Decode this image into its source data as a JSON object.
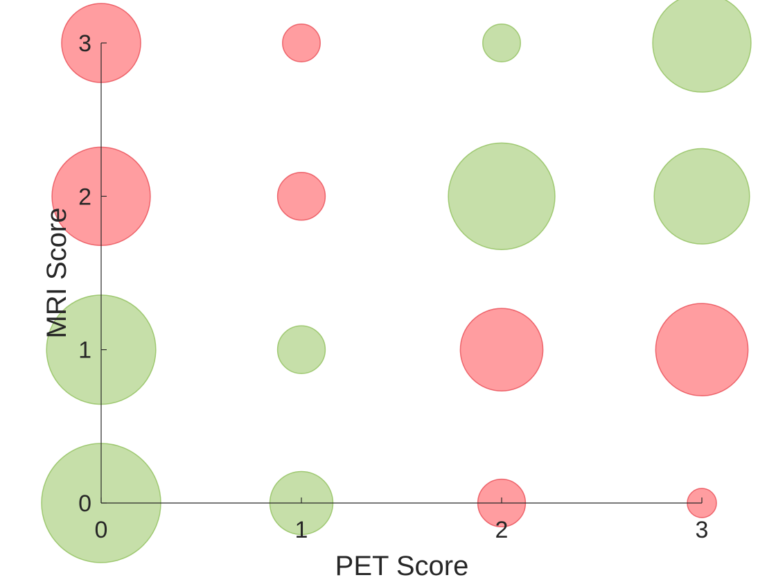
{
  "chart_data": {
    "type": "scatter",
    "subtype": "bubble",
    "xlabel": "PET Score",
    "ylabel": "MRI Score",
    "xlim": [
      0,
      3
    ],
    "ylim": [
      0,
      3
    ],
    "xticks": [
      "0",
      "1",
      "2",
      "3"
    ],
    "yticks": [
      "0",
      "1",
      "2",
      "3"
    ],
    "grid": false,
    "legend": "none",
    "colors": {
      "green": "#a9cf7c",
      "red": "#ff6b6f"
    },
    "points": [
      {
        "x": 0,
        "y": 0,
        "size": 25,
        "color": "green"
      },
      {
        "x": 1,
        "y": 0,
        "size": 7,
        "color": "green"
      },
      {
        "x": 2,
        "y": 0,
        "size": 4,
        "color": "red"
      },
      {
        "x": 3,
        "y": 0,
        "size": 1.5,
        "color": "red"
      },
      {
        "x": 0,
        "y": 1,
        "size": 21,
        "color": "green"
      },
      {
        "x": 1,
        "y": 1,
        "size": 4,
        "color": "green"
      },
      {
        "x": 2,
        "y": 1,
        "size": 12,
        "color": "red"
      },
      {
        "x": 3,
        "y": 1,
        "size": 15,
        "color": "red"
      },
      {
        "x": 0,
        "y": 2,
        "size": 17,
        "color": "red"
      },
      {
        "x": 1,
        "y": 2,
        "size": 4,
        "color": "red"
      },
      {
        "x": 2,
        "y": 2,
        "size": 20,
        "color": "green"
      },
      {
        "x": 3,
        "y": 2,
        "size": 16,
        "color": "green"
      },
      {
        "x": 0,
        "y": 3,
        "size": 11,
        "color": "red"
      },
      {
        "x": 1,
        "y": 3,
        "size": 2.5,
        "color": "red"
      },
      {
        "x": 2,
        "y": 3,
        "size": 2.5,
        "color": "green"
      },
      {
        "x": 3,
        "y": 3,
        "size": 17,
        "color": "green"
      }
    ]
  }
}
